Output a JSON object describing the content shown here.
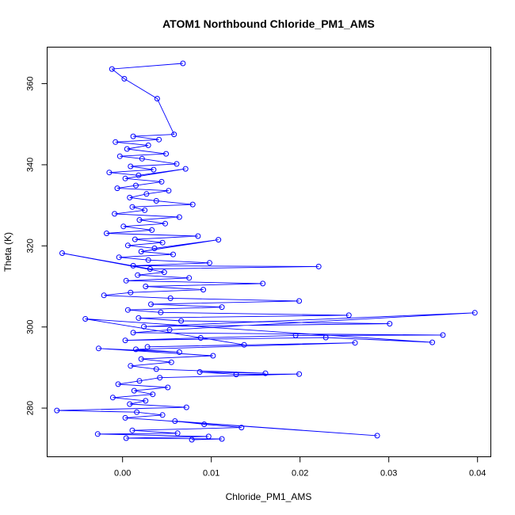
{
  "chart_data": {
    "type": "line",
    "title": "ATOM1 Northbound Chloride_PM1_AMS",
    "xlabel": "Chloride_PM1_AMS",
    "ylabel": "Theta (K)",
    "xlim": [
      -0.0085,
      0.0415
    ],
    "ylim": [
      268,
      369
    ],
    "xticks": [
      0.0,
      0.01,
      0.02,
      0.03,
      0.04
    ],
    "xtick_labels": [
      "0.00",
      "0.01",
      "0.02",
      "0.03",
      "0.04"
    ],
    "yticks": [
      280,
      300,
      320,
      340,
      360
    ],
    "ytick_labels": [
      "280",
      "300",
      "320",
      "340",
      "360"
    ],
    "grid": false,
    "series": [
      {
        "color": "#0000ff",
        "marker": "open-circle",
        "x": [
          0.0068,
          -0.0012,
          0.0002,
          0.0039,
          0.0058,
          0.0012,
          0.0041,
          -0.0008,
          0.0029,
          0.0005,
          0.0049,
          -0.0003,
          0.0022,
          0.0061,
          0.0009,
          0.0035,
          -0.0015,
          0.0018,
          0.0071,
          0.0003,
          0.0044,
          0.0015,
          -0.0006,
          0.0052,
          0.0027,
          0.0008,
          0.0038,
          0.0079,
          0.0011,
          0.0025,
          -0.0009,
          0.0064,
          0.0019,
          0.0048,
          0.0001,
          0.0033,
          -0.0018,
          0.0085,
          0.0014,
          0.0045,
          0.0006,
          0.0036,
          0.0108,
          0.0021,
          0.0057,
          -0.0004,
          0.0029,
          0.0098,
          0.0012,
          0.0221,
          0.0031,
          -0.0068,
          0.0047,
          0.0017,
          0.0075,
          0.0004,
          0.0158,
          0.0026,
          0.0091,
          0.0009,
          -0.0021,
          0.0054,
          0.0199,
          0.0032,
          0.0112,
          0.0006,
          0.0043,
          0.0255,
          0.0018,
          0.0066,
          0.0301,
          0.0024,
          0.0397,
          0.0053,
          0.0012,
          0.0361,
          0.0195,
          0.0088,
          0.0003,
          0.0229,
          0.0349,
          -0.0042,
          0.0137,
          0.0028,
          0.0262,
          0.0015,
          0.0064,
          -0.0027,
          0.0102,
          0.0021,
          0.0055,
          0.0009,
          0.0038,
          0.0161,
          0.0087,
          0.0128,
          0.0199,
          0.0042,
          0.0019,
          -0.0005,
          0.0051,
          0.0013,
          0.0034,
          -0.0011,
          0.0026,
          0.0008,
          0.0072,
          -0.0074,
          0.0016,
          0.0045,
          0.0003,
          0.0287,
          0.0059,
          0.0092,
          0.0134,
          0.0011,
          0.0062,
          -0.0028,
          0.0097,
          0.0004,
          0.0112,
          0.0078
        ],
        "y": [
          365.0,
          363.6,
          361.2,
          356.3,
          347.5,
          347.0,
          346.2,
          345.6,
          344.8,
          343.9,
          342.7,
          342.1,
          341.5,
          340.2,
          339.6,
          338.8,
          338.1,
          337.4,
          339.0,
          336.6,
          335.8,
          334.9,
          334.2,
          333.6,
          332.8,
          331.9,
          331.1,
          330.2,
          329.6,
          328.8,
          327.9,
          327.1,
          326.4,
          325.5,
          324.8,
          323.9,
          323.1,
          322.4,
          321.6,
          320.8,
          320.1,
          319.4,
          321.5,
          318.6,
          317.9,
          317.2,
          316.5,
          315.8,
          315.1,
          314.9,
          314.3,
          318.2,
          313.5,
          312.8,
          312.1,
          311.4,
          310.7,
          310.0,
          309.2,
          308.5,
          307.8,
          307.1,
          306.4,
          305.6,
          304.9,
          304.2,
          303.6,
          302.9,
          302.2,
          301.5,
          300.8,
          300.1,
          303.5,
          299.3,
          298.6,
          298.0,
          297.9,
          297.3,
          296.7,
          297.4,
          296.2,
          302.0,
          295.6,
          295.1,
          296.1,
          294.5,
          293.8,
          294.7,
          292.9,
          292.1,
          291.3,
          290.4,
          289.6,
          288.6,
          288.9,
          288.3,
          288.4,
          287.5,
          286.7,
          285.9,
          285.1,
          284.3,
          283.4,
          282.6,
          281.8,
          281.0,
          280.2,
          279.4,
          279.0,
          278.3,
          277.6,
          273.2,
          276.8,
          276.0,
          275.2,
          274.5,
          273.8,
          273.6,
          273.0,
          272.6,
          272.4,
          272.2
        ]
      }
    ]
  }
}
